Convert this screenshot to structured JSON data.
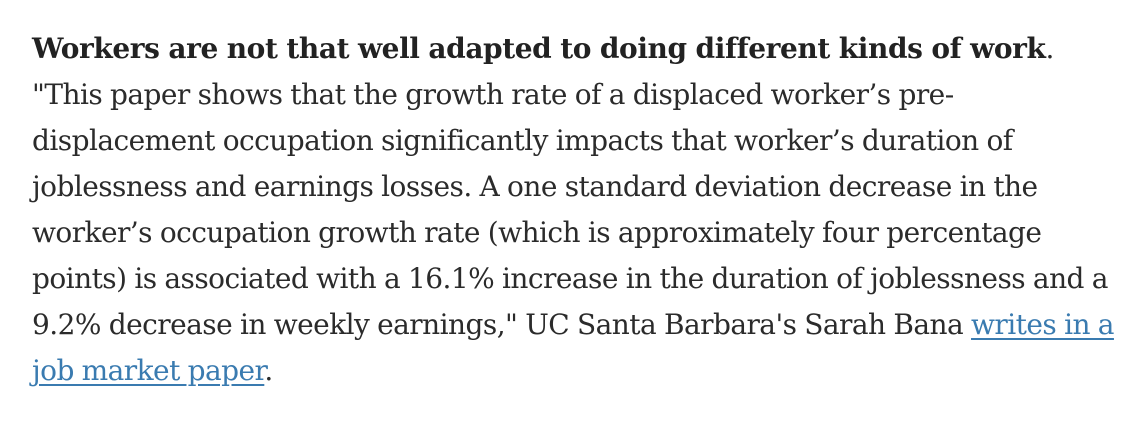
{
  "article": {
    "lead": "Workers are not that well adapted to doing different kinds of work",
    "lead_tail": ". ",
    "quote": "\"This paper shows that the growth rate of a displaced worker’s pre-displacement occupation significantly impacts that worker’s duration of joblessness and earnings losses. A one standard deviation decrease in the worker’s occupation growth rate (which is approximately four percentage points) is associated with a 16.1% increase in the duration of joblessness and a 9.2% decrease in weekly earnings,\" UC Santa Barbara's Sarah Bana ",
    "link_text": "writes in a job market paper",
    "end": "."
  },
  "colors": {
    "text": "#2b2b2b",
    "link": "#3a7bb0",
    "background": "#ffffff"
  }
}
